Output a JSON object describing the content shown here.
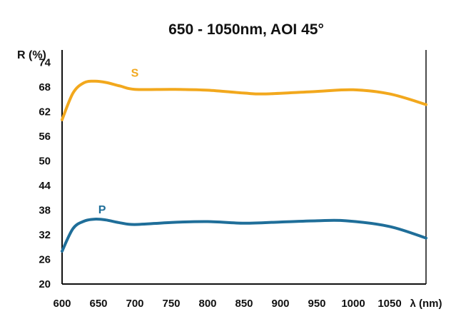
{
  "chart_data": {
    "type": "line",
    "title": "650 - 1050nm, AOI 45°",
    "ylabel": "R (%)",
    "xlabel": "λ (nm)",
    "x_ticks": [
      "600",
      "650",
      "700",
      "750",
      "800",
      "850",
      "900",
      "950",
      "1000",
      "1050"
    ],
    "y_ticks": [
      "74",
      "68",
      "62",
      "56",
      "50",
      "44",
      "38",
      "32",
      "26",
      "20"
    ],
    "xlim": [
      600,
      1100
    ],
    "ylim": [
      20,
      77
    ],
    "series": [
      {
        "name": "S",
        "color": "#F2A81D",
        "x": [
          600,
          615,
          630,
          645,
          660,
          680,
          700,
          750,
          800,
          850,
          880,
          950,
          1000,
          1050,
          1100
        ],
        "y": [
          60,
          66.5,
          69,
          69.4,
          69.1,
          68.2,
          67.4,
          67.4,
          67.2,
          66.5,
          66.3,
          66.9,
          67.3,
          66.3,
          63.7
        ]
      },
      {
        "name": "P",
        "color": "#1F6E99",
        "x": [
          600,
          615,
          630,
          645,
          660,
          680,
          700,
          750,
          800,
          850,
          900,
          950,
          990,
          1050,
          1100
        ],
        "y": [
          28,
          33.5,
          35.3,
          35.8,
          35.6,
          34.9,
          34.5,
          35.0,
          35.2,
          34.8,
          35.1,
          35.4,
          35.4,
          34.0,
          31.2
        ]
      }
    ]
  }
}
